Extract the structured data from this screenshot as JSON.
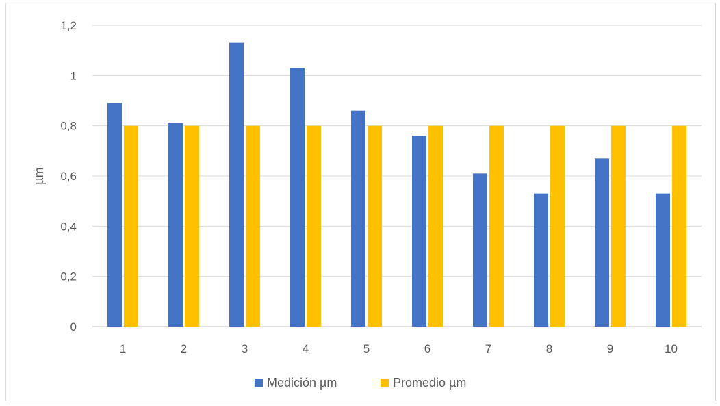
{
  "chart_data": {
    "type": "bar",
    "categories": [
      "1",
      "2",
      "3",
      "4",
      "5",
      "6",
      "7",
      "8",
      "9",
      "10"
    ],
    "series": [
      {
        "name": "Medición µm",
        "color": "#4472C4",
        "values": [
          0.89,
          0.81,
          1.13,
          1.03,
          0.86,
          0.76,
          0.61,
          0.53,
          0.67,
          0.53
        ]
      },
      {
        "name": "Promedio µm",
        "color": "#FFC000",
        "values": [
          0.8,
          0.8,
          0.8,
          0.8,
          0.8,
          0.8,
          0.8,
          0.8,
          0.8,
          0.8
        ]
      }
    ],
    "title": "",
    "xlabel": "",
    "ylabel": "µm",
    "ylim": [
      0,
      1.2
    ],
    "yticks": [
      "0",
      "0,2",
      "0,4",
      "0,6",
      "0,8",
      "1",
      "1,2"
    ],
    "grid": true,
    "legend_position": "bottom"
  }
}
